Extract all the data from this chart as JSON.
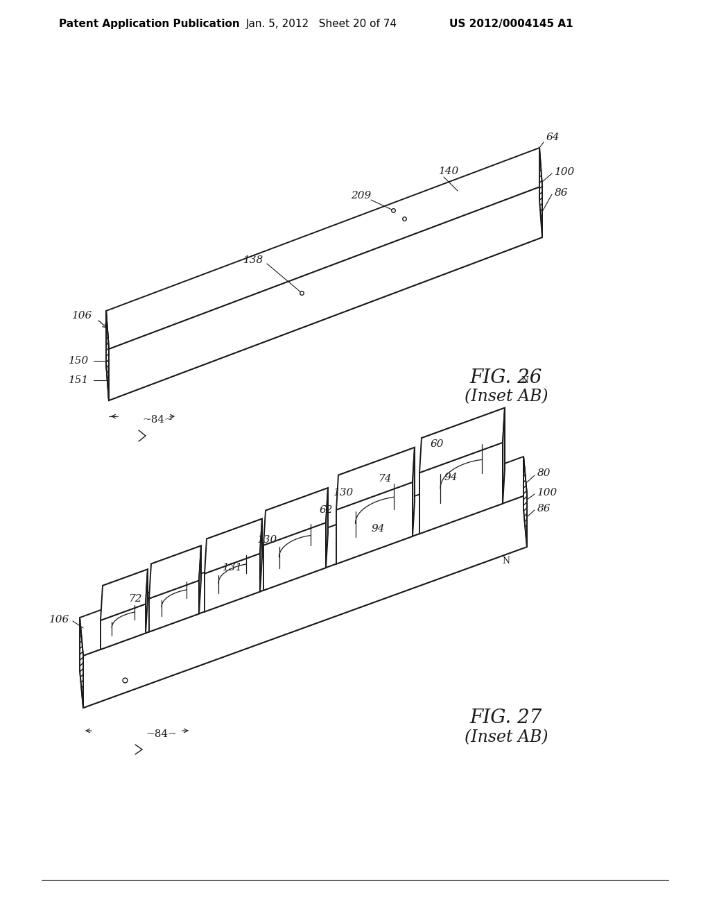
{
  "background_color": "#ffffff",
  "header_left": "Patent Application Publication",
  "header_center": "Jan. 5, 2012   Sheet 20 of 74",
  "header_right": "US 2012/0004145 A1",
  "fig26_label": "FIG. 26",
  "fig26_sublabel": "(Inset AB)",
  "fig27_label": "FIG. 27",
  "fig27_sublabel": "(Inset AB)",
  "line_color": "#1a1a1a",
  "label_color": "#1a1a1a",
  "font_size_header": 11,
  "font_size_ref": 11,
  "font_size_fig": 20
}
